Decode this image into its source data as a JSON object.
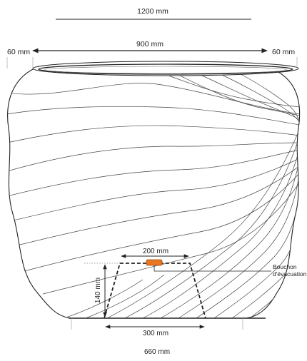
{
  "dimensions": {
    "total_width": "1200 mm",
    "opening_width": "900 mm",
    "rim_left": "60 mm",
    "rim_right": "60 mm",
    "drain_top": "200 mm",
    "drain_height": "140 mm",
    "drain_bottom": "300 mm",
    "base_width": "660 mm"
  },
  "callout": {
    "line1": "Bouchon",
    "line2": "d'évacuation"
  },
  "colors": {
    "line": "#222222",
    "plug": "#e87722",
    "contour": "#444444"
  }
}
